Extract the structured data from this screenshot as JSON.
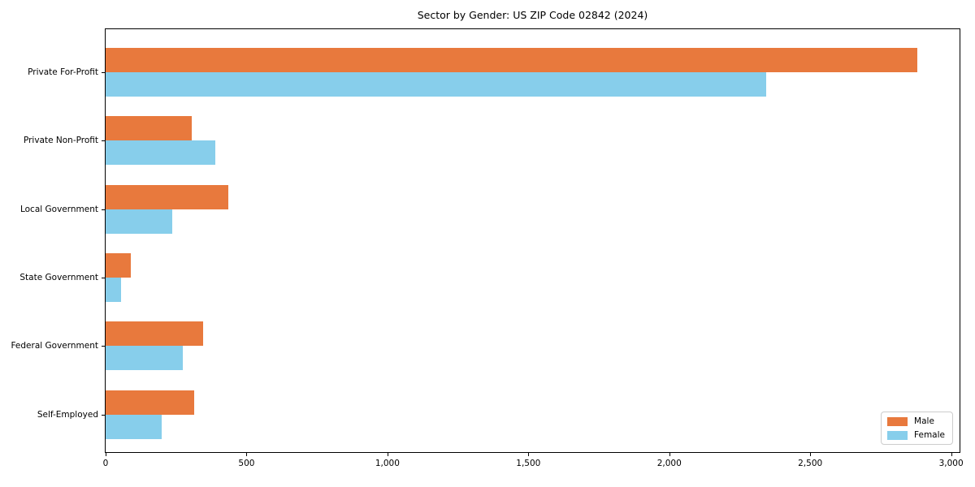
{
  "chart_data": {
    "type": "bar",
    "orientation": "horizontal",
    "title": "Sector by Gender: US ZIP Code 02842 (2024)",
    "categories": [
      "Private For-Profit",
      "Private Non-Profit",
      "Local Government",
      "State Government",
      "Federal Government",
      "Self-Employed"
    ],
    "series": [
      {
        "name": "Male",
        "color": "#e8793d",
        "values": [
          2880,
          305,
          435,
          90,
          345,
          315
        ]
      },
      {
        "name": "Female",
        "color": "#87ceeb",
        "values": [
          2345,
          390,
          235,
          55,
          275,
          200
        ]
      }
    ],
    "xlabel": "",
    "ylabel": "",
    "xlim": [
      0,
      3030
    ],
    "x_ticks": [
      0,
      500,
      1000,
      1500,
      2000,
      2500,
      3000
    ],
    "x_tick_labels": [
      "0",
      "500",
      "1,000",
      "1,500",
      "2,000",
      "2,500",
      "3,000"
    ],
    "grid": false,
    "legend": {
      "position": "lower right",
      "entries": [
        "Male",
        "Female"
      ]
    },
    "colors": {
      "male": "#e8793d",
      "female": "#87ceeb",
      "axis": "#000000",
      "text": "#000000",
      "legend_border": "#cccccc",
      "background": "#ffffff"
    }
  }
}
